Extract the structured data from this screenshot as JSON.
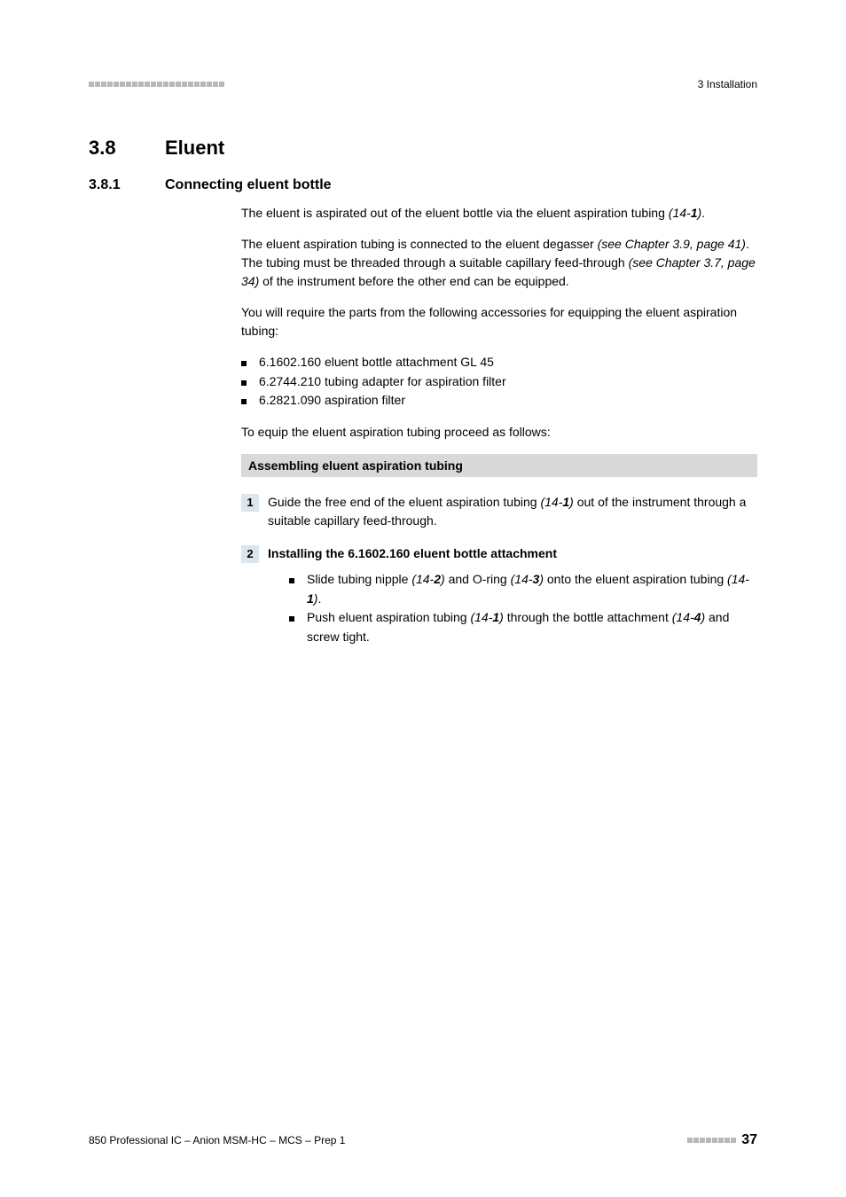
{
  "header": {
    "chapter": "3 Installation"
  },
  "section": {
    "number": "3.8",
    "title": "Eluent"
  },
  "subsection": {
    "number": "3.8.1",
    "title": "Connecting eluent bottle"
  },
  "paragraphs": {
    "p1a": "The eluent is aspirated out of the eluent bottle via the eluent aspiration tubing ",
    "p1_ref": "(14-",
    "p1_refbold": "1",
    "p1_refend": ")",
    "p1b": ".",
    "p2a": "The eluent aspiration tubing is connected to the eluent degasser ",
    "p2_ref": "(see Chapter 3.9, page 41)",
    "p2b": ". The tubing must be threaded through a suitable capillary feed-through ",
    "p2_ref2": "(see Chapter 3.7, page 34)",
    "p2c": " of the instrument before the other end can be equipped.",
    "p3": "You will require the parts from the following accessories for equipping the eluent aspiration tubing:",
    "p4": "To equip the eluent aspiration tubing proceed as follows:"
  },
  "bullets_main": [
    "6.1602.160 eluent bottle attachment GL 45",
    "6.2744.210 tubing adapter for aspiration filter",
    "6.2821.090 aspiration filter"
  ],
  "step_heading": "Assembling eluent aspiration tubing",
  "steps": {
    "s1": {
      "num": "1",
      "a": "Guide the free end of the eluent aspiration tubing ",
      "ref": "(14-",
      "refbold": "1",
      "refend": ")",
      "b": " out of the instrument through a suitable capillary feed-through."
    },
    "s2": {
      "num": "2",
      "title": "Installing the 6.1602.160 eluent bottle attachment",
      "b1a": "Slide tubing nipple ",
      "b1_ref1": "(14-",
      "b1_ref1b": "2",
      "b1_ref1e": ")",
      "b1b": " and O-ring ",
      "b1_ref2": "(14-",
      "b1_ref2b": "3",
      "b1_ref2e": ")",
      "b1c": " onto the eluent aspiration tubing ",
      "b1_ref3": "(14-",
      "b1_ref3b": "1",
      "b1_ref3e": ")",
      "b1d": ".",
      "b2a": "Push eluent aspiration tubing ",
      "b2_ref1": "(14-",
      "b2_ref1b": "1",
      "b2_ref1e": ")",
      "b2b": " through the bottle attachment ",
      "b2_ref2": "(14-",
      "b2_ref2b": "4",
      "b2_ref2e": ")",
      "b2c": " and screw tight."
    }
  },
  "footer": {
    "left": "850 Professional IC – Anion MSM-HC – MCS – Prep 1",
    "page": "37"
  },
  "colors": {
    "step_num_bg": "#dbe6ef",
    "heading_bg": "#d9d9d9",
    "square_gray": "#b8b8b8"
  }
}
